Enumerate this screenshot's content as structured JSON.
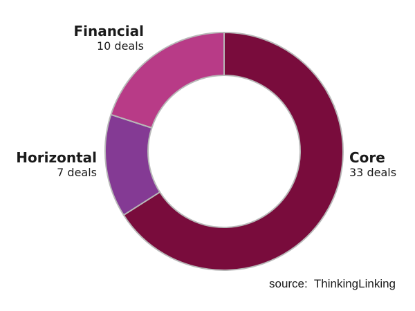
{
  "chart_data": {
    "type": "pie",
    "style": "donut",
    "slices": [
      {
        "name": "Core",
        "value": 33,
        "display": "33 deals",
        "color": "#790C3C"
      },
      {
        "name": "Horizontal",
        "value": 7,
        "display": "7 deals",
        "color": "#843A94"
      },
      {
        "name": "Financial",
        "value": 10,
        "display": "10 deals",
        "color": "#B83B87"
      }
    ],
    "legend": "none",
    "source": "source:  ThinkingLinking"
  }
}
